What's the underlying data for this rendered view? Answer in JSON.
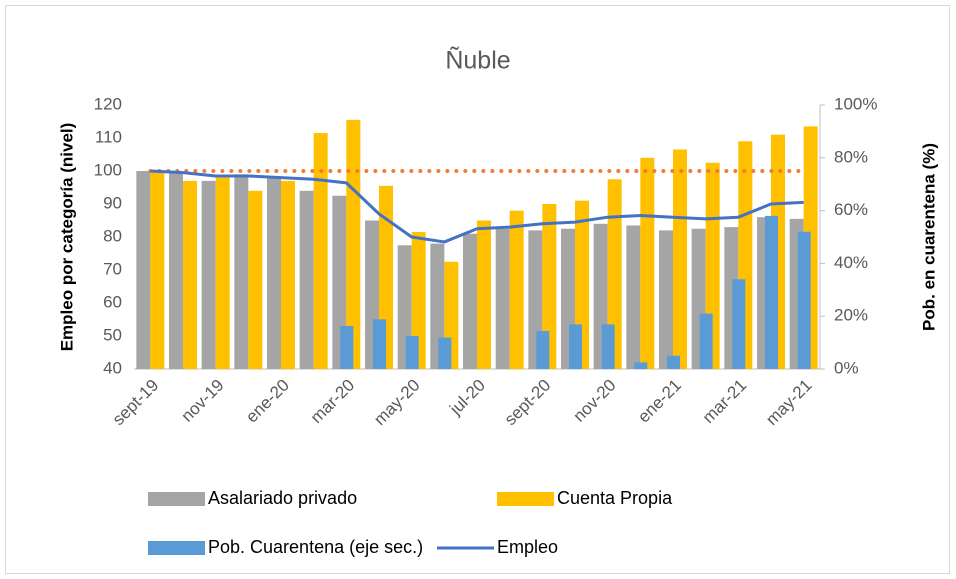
{
  "chart_data": {
    "type": "bar",
    "title": "Ñuble",
    "ylabel": "Empleo por categoría (nivel)",
    "y2label": "Pob. en cuarentena (%)",
    "categories": [
      "sept-19",
      null,
      "nov-19",
      null,
      "ene-20",
      null,
      "mar-20",
      null,
      "may-20",
      null,
      "jul-20",
      null,
      "sept-20",
      null,
      "nov-20",
      null,
      "ene-21",
      null,
      "mar-21",
      null,
      "may-21"
    ],
    "ylim": [
      40,
      120
    ],
    "yticks": [
      40,
      50,
      60,
      70,
      80,
      90,
      100,
      110,
      120
    ],
    "y2lim": [
      0,
      100
    ],
    "y2ticks": [
      {
        "value": 0,
        "label": "0%"
      },
      {
        "value": 20,
        "label": "20%"
      },
      {
        "value": 40,
        "label": "40%"
      },
      {
        "value": 60,
        "label": "60%"
      },
      {
        "value": 80,
        "label": "80%"
      },
      {
        "value": 100,
        "label": "100%"
      }
    ],
    "series": [
      {
        "name": "Asalariado privado",
        "color": "#a5a5a5",
        "kind": "bar",
        "values": [
          100,
          99.5,
          97,
          99,
          98,
          94,
          92.5,
          85,
          77.5,
          78,
          81,
          82.5,
          82,
          82.5,
          84,
          83.5,
          82,
          82.5,
          83,
          86,
          85.5
        ]
      },
      {
        "name": "Cuenta Propia",
        "color": "#ffc000",
        "kind": "bar",
        "values": [
          100,
          97,
          98,
          94,
          97,
          111.5,
          115.5,
          95.5,
          81.5,
          72.5,
          85,
          88,
          90,
          91,
          97.5,
          104,
          106.5,
          102.5,
          109,
          111,
          113.5
        ]
      },
      {
        "name": "Pob. Cuarentena (eje sec.)",
        "color": "#5b9bd5",
        "kind": "bar",
        "axis": "y2",
        "values": [
          0,
          0,
          0,
          0,
          0,
          0,
          16.3,
          18.8,
          12.5,
          11.9,
          0,
          0,
          14.4,
          16.9,
          16.9,
          2.5,
          5,
          21,
          34,
          58,
          52
        ]
      },
      {
        "name": "Empleo",
        "color": "#4472c4",
        "kind": "line",
        "values": [
          100,
          99.5,
          98.5,
          98.5,
          98,
          97.5,
          96.4,
          87,
          80,
          78.5,
          82.5,
          83,
          84,
          84.5,
          86,
          86.5,
          86,
          85.5,
          86,
          90,
          90.5
        ]
      }
    ],
    "reference_line": {
      "value": 100,
      "color": "#ed7d31"
    }
  }
}
